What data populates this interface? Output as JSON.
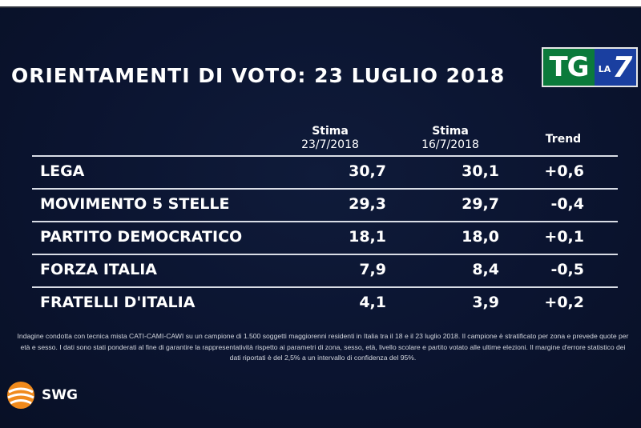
{
  "title": "ORIENTAMENTI DI VOTO: 23 LUGLIO 2018",
  "logo": {
    "tg": "TG",
    "la": "LA",
    "seven": "7"
  },
  "brand": "SWG",
  "headers": {
    "col1": "Stima",
    "col1_sub": "23/7/2018",
    "col2": "Stima",
    "col2_sub": "16/7/2018",
    "col3": "Trend"
  },
  "chart_data": {
    "type": "table",
    "title": "ORIENTAMENTI DI VOTO: 23 LUGLIO 2018",
    "columns": [
      "Stima 23/7/2018",
      "Stima 16/7/2018",
      "Trend"
    ],
    "rows": [
      {
        "party": "LEGA",
        "stima_23": "30,7",
        "stima_16": "30,1",
        "trend": "+0,6"
      },
      {
        "party": "MOVIMENTO 5 STELLE",
        "stima_23": "29,3",
        "stima_16": "29,7",
        "trend": "-0,4"
      },
      {
        "party": "PARTITO DEMOCRATICO",
        "stima_23": "18,1",
        "stima_16": "18,0",
        "trend": "+0,1"
      },
      {
        "party": "FORZA ITALIA",
        "stima_23": "7,9",
        "stima_16": "8,4",
        "trend": "-0,5"
      },
      {
        "party": "FRATELLI D'ITALIA",
        "stima_23": "4,1",
        "stima_16": "3,9",
        "trend": "+0,2"
      }
    ]
  },
  "footnote": "Indagine condotta con tecnica mista CATI-CAMI-CAWI su un campione di 1.500 soggetti maggiorenni residenti in Italia tra il  18 e il 23 luglio 2018. Il campione è stratificato per zona e prevede quote per età e sesso. I dati sono stati ponderati al fine di garantire la rappresentatività rispetto ai parametri di zona, sesso, età, livello scolare e partito votato alle ultime elezioni. Il margine d'errore statistico dei dati riportati è del 2,5% a un intervallo di confidenza del 95%.",
  "colors": {
    "background": "#0b1430",
    "text": "#ffffff",
    "rule": "#d9dde6",
    "tg_green": "#0b7a3b",
    "la7_blue": "#1a3fa0",
    "swg_orange": "#f08a1c"
  }
}
